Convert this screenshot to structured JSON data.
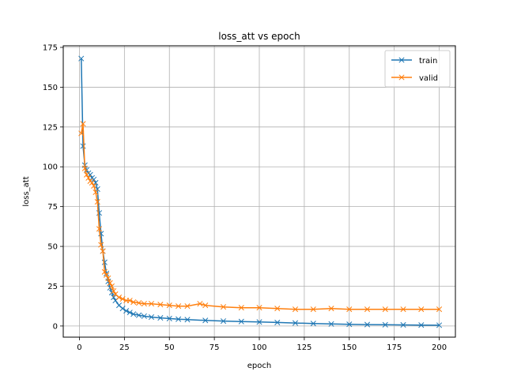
{
  "chart_data": {
    "type": "line",
    "title": "loss_att vs epoch",
    "xlabel": "epoch",
    "ylabel": "loss_att",
    "xlim": [
      -9,
      209
    ],
    "ylim": [
      -7,
      176
    ],
    "xticks": [
      0,
      25,
      50,
      75,
      100,
      125,
      150,
      175,
      200
    ],
    "yticks": [
      0,
      25,
      50,
      75,
      100,
      125,
      150,
      175
    ],
    "grid": true,
    "legend_position": "top-right",
    "marker": "x",
    "series": [
      {
        "name": "train",
        "color": "#1f77b4",
        "x": [
          1,
          2,
          3,
          4,
          5,
          6,
          7,
          8,
          9,
          10,
          11,
          12,
          13,
          14,
          15,
          16,
          17,
          18,
          19,
          20,
          22,
          24,
          26,
          28,
          30,
          33,
          36,
          40,
          45,
          50,
          55,
          60,
          70,
          80,
          90,
          100,
          110,
          120,
          130,
          140,
          150,
          160,
          170,
          180,
          190,
          200
        ],
        "y": [
          168,
          113,
          101,
          98,
          96,
          95,
          93,
          92,
          90,
          86,
          71,
          58,
          47,
          40,
          33,
          28,
          24,
          21,
          18,
          16,
          13,
          11,
          9.5,
          8.5,
          7.5,
          6.8,
          6.2,
          5.6,
          5.1,
          4.7,
          4.3,
          4.0,
          3.5,
          3.1,
          2.8,
          2.5,
          2.2,
          1.9,
          1.6,
          1.3,
          1.1,
          0.9,
          0.8,
          0.7,
          0.6,
          0.5
        ]
      },
      {
        "name": "valid",
        "color": "#ff7f0e",
        "x": [
          1,
          2,
          3,
          4,
          5,
          6,
          7,
          8,
          9,
          10,
          11,
          12,
          13,
          14,
          15,
          16,
          17,
          18,
          19,
          20,
          22,
          24,
          26,
          28,
          30,
          33,
          36,
          40,
          45,
          50,
          55,
          60,
          67,
          70,
          80,
          90,
          100,
          110,
          120,
          130,
          140,
          150,
          160,
          170,
          180,
          190,
          200
        ],
        "y": [
          121,
          127,
          99,
          95,
          93,
          91,
          90,
          88,
          84,
          78,
          61,
          51,
          47,
          34,
          32,
          30,
          27,
          25,
          22,
          20,
          18,
          17,
          16,
          16,
          15,
          14.5,
          14,
          14,
          13.5,
          13,
          12.5,
          12.5,
          14,
          13,
          12,
          11.5,
          11.5,
          11,
          10.5,
          10.5,
          11,
          10.5,
          10.5,
          10.5,
          10.5,
          10.5,
          10.5
        ]
      }
    ]
  }
}
